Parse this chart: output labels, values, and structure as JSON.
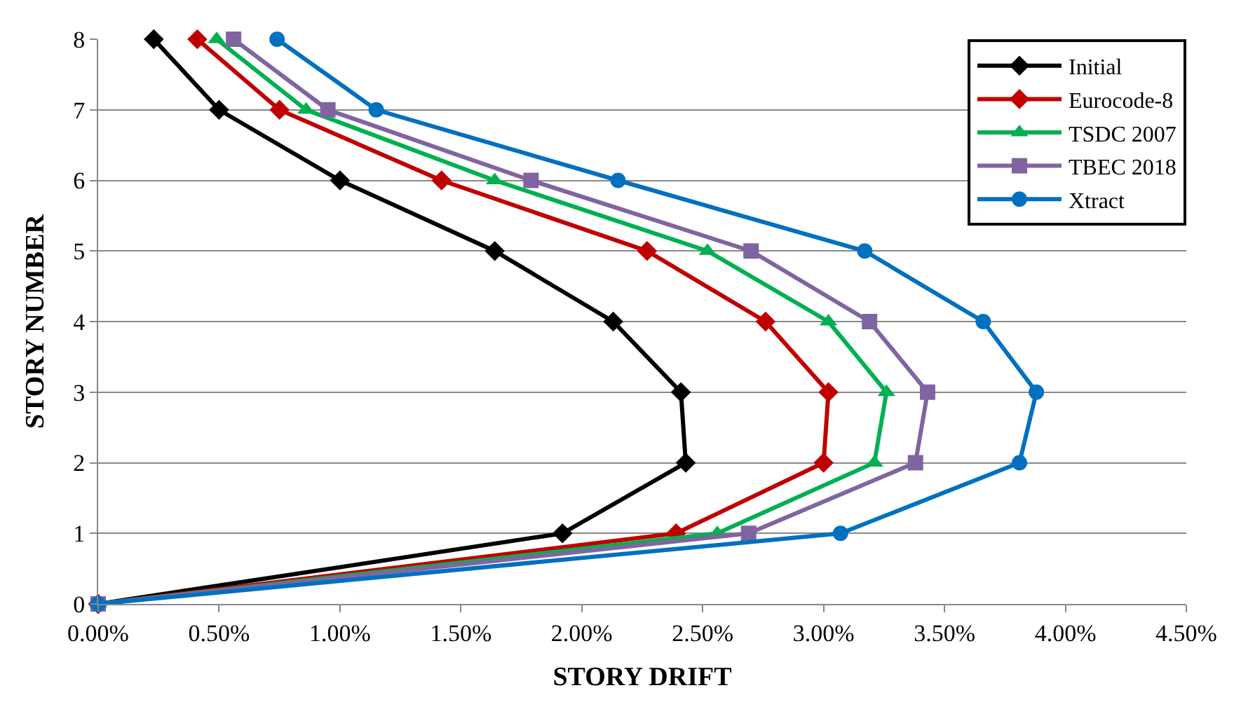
{
  "chart_data": {
    "type": "line",
    "xlabel": "STORY DRIFT",
    "ylabel": "STORY NUMBER",
    "xlim": [
      0,
      4.5
    ],
    "xticks": [
      {
        "value": 0,
        "label": "0.00%"
      },
      {
        "value": 0.5,
        "label": "0.50%"
      },
      {
        "value": 1,
        "label": "1.00%"
      },
      {
        "value": 1.5,
        "label": "1.50%"
      },
      {
        "value": 2,
        "label": "2.00%"
      },
      {
        "value": 2.5,
        "label": "2.50%"
      },
      {
        "value": 3,
        "label": "3.00%"
      },
      {
        "value": 3.5,
        "label": "3.50%"
      },
      {
        "value": 4,
        "label": "4.00%"
      },
      {
        "value": 4.5,
        "label": "4.50%"
      }
    ],
    "ylim": [
      0,
      8
    ],
    "yticks": [
      0,
      1,
      2,
      3,
      4,
      5,
      6,
      7,
      8
    ],
    "grid": "y",
    "legend": "top right",
    "line_style": "solid",
    "series": [
      {
        "name": "Initial",
        "color": "#000000",
        "marker": "diamond",
        "x": [
          0,
          1.92,
          2.43,
          2.41,
          2.13,
          1.64,
          1.0,
          0.5,
          0.23
        ],
        "values": [
          0,
          1,
          2,
          3,
          4,
          5,
          6,
          7,
          8
        ]
      },
      {
        "name": "Eurocode-8",
        "color": "#c00000",
        "marker": "diamond",
        "x": [
          0,
          2.39,
          3.0,
          3.02,
          2.76,
          2.27,
          1.42,
          0.75,
          0.41
        ],
        "values": [
          0,
          1,
          2,
          3,
          4,
          5,
          6,
          7,
          8
        ]
      },
      {
        "name": "TSDC 2007",
        "color": "#00b050",
        "marker": "triangle",
        "x": [
          0,
          2.56,
          3.21,
          3.26,
          3.02,
          2.52,
          1.64,
          0.86,
          0.49
        ],
        "values": [
          0,
          1,
          2,
          3,
          4,
          5,
          6,
          7,
          8
        ]
      },
      {
        "name": "TBEC 2018",
        "color": "#8064a2",
        "marker": "square",
        "x": [
          0,
          2.69,
          3.38,
          3.43,
          3.19,
          2.7,
          1.79,
          0.95,
          0.56
        ],
        "values": [
          0,
          1,
          2,
          3,
          4,
          5,
          6,
          7,
          8
        ]
      },
      {
        "name": "Xtract",
        "color": "#0070c0",
        "marker": "circle",
        "x": [
          0,
          3.07,
          3.81,
          3.88,
          3.66,
          3.17,
          2.15,
          1.15,
          0.74
        ],
        "values": [
          0,
          1,
          2,
          3,
          4,
          5,
          6,
          7,
          8
        ]
      }
    ]
  }
}
